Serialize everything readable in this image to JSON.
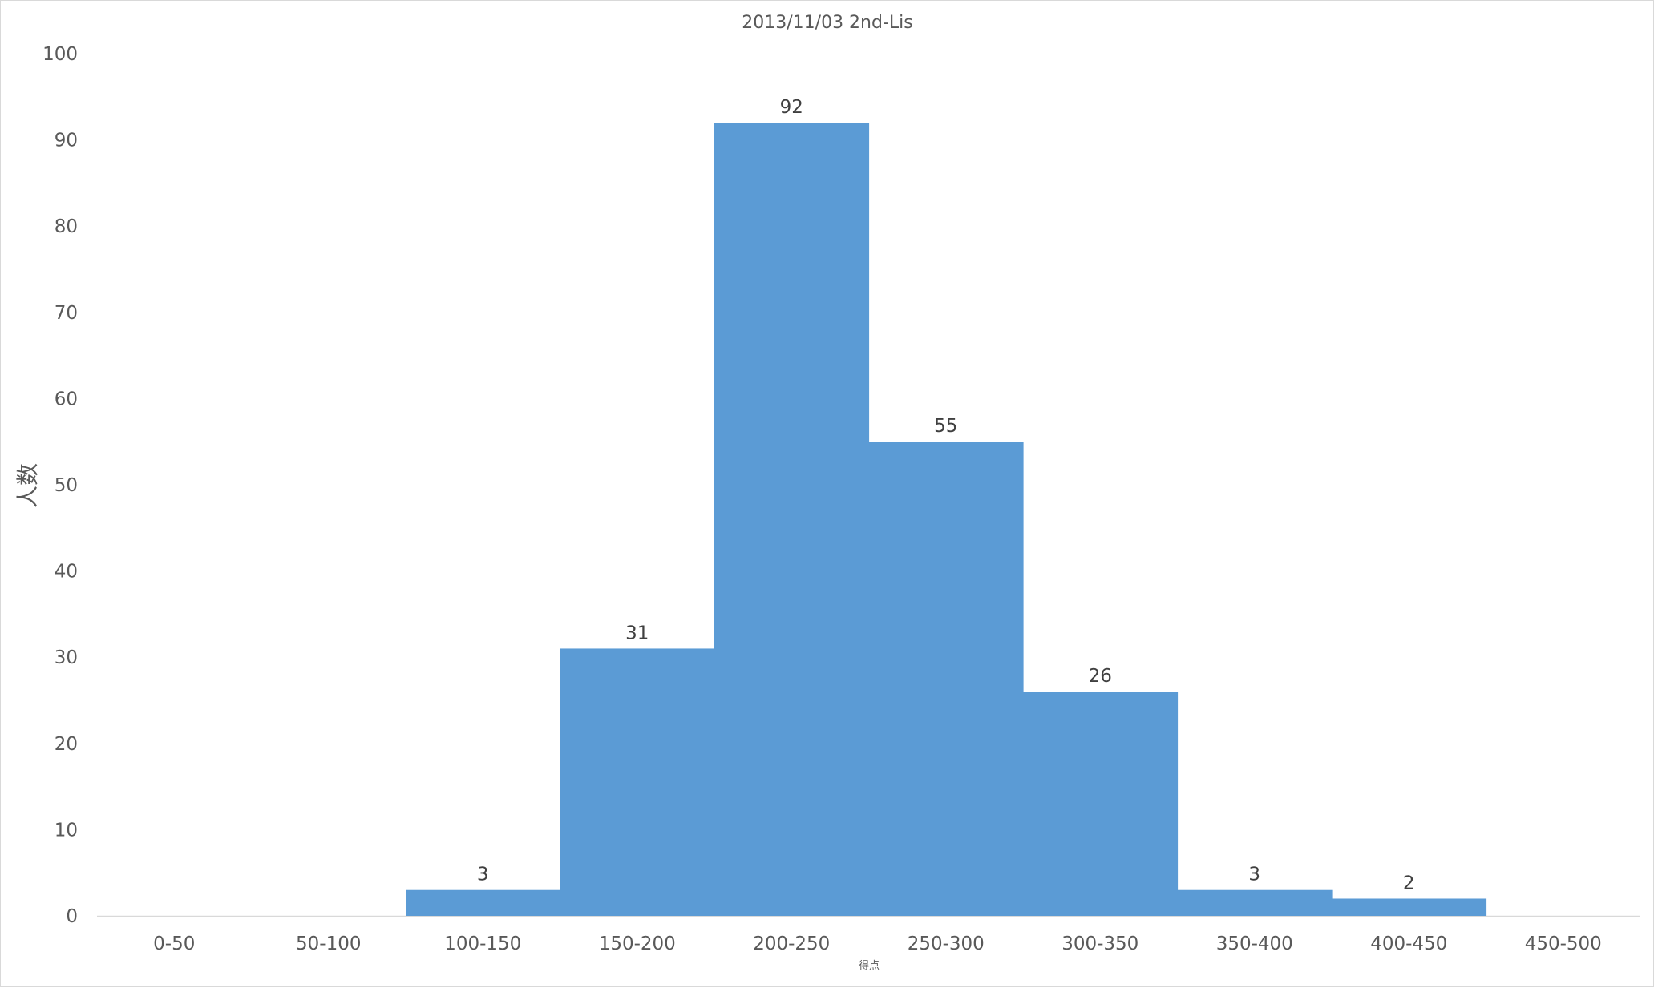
{
  "chart_data": {
    "type": "bar",
    "title": "2013/11/03 2nd-Lis",
    "xlabel": "得点",
    "ylabel": "人数",
    "categories": [
      "0-50",
      "50-100",
      "100-150",
      "150-200",
      "200-250",
      "250-300",
      "300-350",
      "350-400",
      "400-450",
      "450-500"
    ],
    "values": [
      0,
      0,
      3,
      31,
      92,
      55,
      26,
      3,
      2,
      0
    ],
    "data_labels": [
      "",
      "",
      "3",
      "31",
      "92",
      "55",
      "26",
      "3",
      "2",
      ""
    ],
    "ylim": [
      0,
      100
    ],
    "yticks": [
      "0",
      "10",
      "20",
      "30",
      "40",
      "50",
      "60",
      "70",
      "80",
      "90",
      "100"
    ],
    "grid": false,
    "legend": "none",
    "bar_color": "#5b9bd5"
  }
}
